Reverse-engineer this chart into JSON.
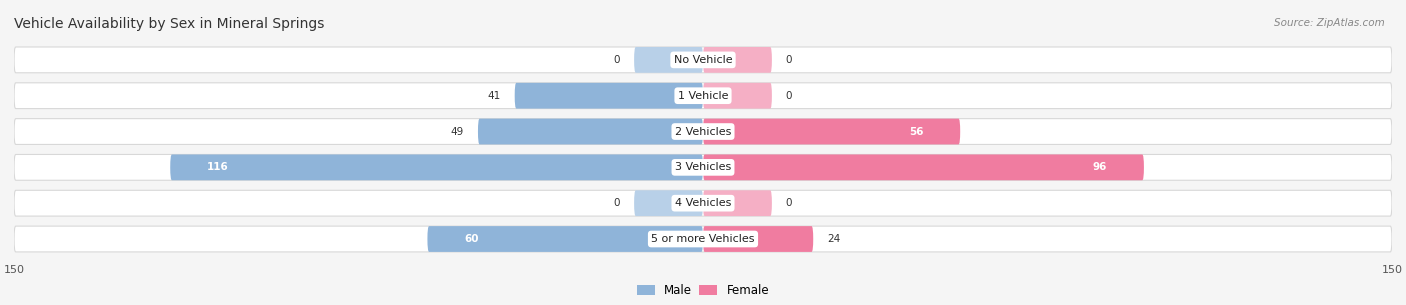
{
  "title": "Vehicle Availability by Sex in Mineral Springs",
  "source": "Source: ZipAtlas.com",
  "categories": [
    "No Vehicle",
    "1 Vehicle",
    "2 Vehicles",
    "3 Vehicles",
    "4 Vehicles",
    "5 or more Vehicles"
  ],
  "male_values": [
    0,
    41,
    49,
    116,
    0,
    60
  ],
  "female_values": [
    0,
    0,
    56,
    96,
    0,
    24
  ],
  "male_color": "#8fb4d9",
  "female_color": "#f07ca0",
  "male_color_light": "#b8d0e8",
  "female_color_light": "#f5afc5",
  "xlim": [
    -150,
    150
  ],
  "xticks": [
    -150,
    150
  ],
  "background_color": "#f5f5f5",
  "bar_bg_color": "#ffffff",
  "bar_bg_edge": "#d8d8d8",
  "title_fontsize": 10,
  "source_fontsize": 7.5,
  "legend_labels": [
    "Male",
    "Female"
  ],
  "zero_stub": 15
}
